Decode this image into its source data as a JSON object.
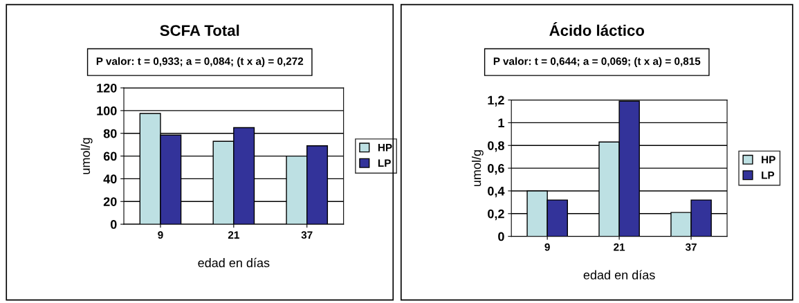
{
  "chart_data": [
    {
      "type": "bar",
      "title": "SCFA Total",
      "subtitle": "P valor: t = 0,933; a = 0,084; (t x a) = 0,272",
      "xlabel": "edad en días",
      "ylabel": "umol/g",
      "categories": [
        "9",
        "21",
        "37"
      ],
      "series": [
        {
          "name": "HP",
          "color": "#bde0e3",
          "values": [
            97.5,
            73,
            60
          ]
        },
        {
          "name": "LP",
          "color": "#33339a",
          "values": [
            78.5,
            85,
            69
          ]
        }
      ],
      "ylim": [
        0,
        120
      ],
      "yticks": [
        0,
        20,
        40,
        60,
        80,
        100,
        120
      ],
      "grid": "y",
      "legend": "right"
    },
    {
      "type": "bar",
      "title": "Ácido láctico",
      "subtitle": "P valor: t = 0,644; a = 0,069; (t x a) = 0,815",
      "xlabel": "edad en días",
      "ylabel": "umol/g",
      "categories": [
        "9",
        "21",
        "37"
      ],
      "series": [
        {
          "name": "HP",
          "color": "#bde0e3",
          "values": [
            0.4,
            0.83,
            0.21
          ]
        },
        {
          "name": "LP",
          "color": "#33339a",
          "values": [
            0.32,
            1.19,
            0.32
          ]
        }
      ],
      "ylim": [
        0,
        1.2
      ],
      "yticks": [
        0,
        {
          "value": 0.2,
          "label": "0,2"
        },
        {
          "value": 0.4,
          "label": "0,4"
        },
        {
          "value": 0.6,
          "label": "0,6"
        },
        {
          "value": 0.8,
          "label": "0,8"
        },
        1,
        {
          "value": 1.2,
          "label": "1,2"
        }
      ],
      "grid": "y",
      "legend": "right"
    }
  ]
}
